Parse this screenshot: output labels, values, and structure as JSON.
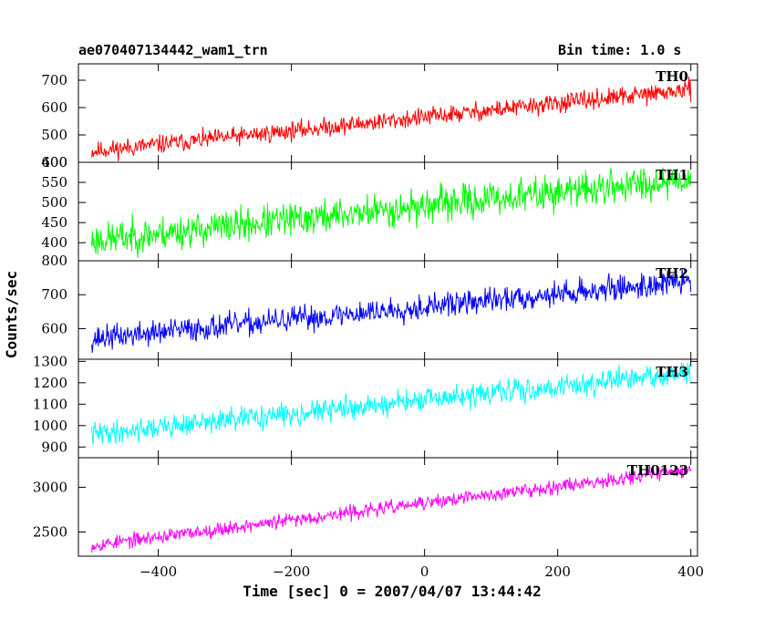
{
  "header": {
    "title_left": "ae070407134442_wam1_trn",
    "title_right": "Bin time: 1.0 s"
  },
  "chart_data": {
    "type": "line",
    "xlabel": "Time [sec] 0 = 2007/04/07 13:44:42",
    "ylabel": "Counts/sec",
    "xlim": [
      -520,
      410
    ],
    "x_start": -500,
    "x_end": 400,
    "xticks": [
      -400,
      -200,
      0,
      200,
      400
    ],
    "panels": [
      {
        "name": "TH0",
        "color": "#ff0000",
        "ylim": [
          400,
          760
        ],
        "yticks": [
          400,
          500,
          600,
          700
        ],
        "trend_start": 440,
        "trend_end": 665,
        "noise": 24,
        "seed": 11
      },
      {
        "name": "TH1",
        "color": "#00ff00",
        "ylim": [
          355,
          600
        ],
        "yticks": [
          400,
          450,
          500,
          550,
          600
        ],
        "trend_start": 405,
        "trend_end": 560,
        "noise": 30,
        "seed": 23
      },
      {
        "name": "TH2",
        "color": "#0000ff",
        "ylim": [
          510,
          800
        ],
        "yticks": [
          600,
          700,
          800
        ],
        "trend_start": 570,
        "trend_end": 740,
        "noise": 26,
        "seed": 37
      },
      {
        "name": "TH3",
        "color": "#00ffff",
        "ylim": [
          850,
          1310
        ],
        "yticks": [
          900,
          1000,
          1100,
          1200,
          1300
        ],
        "trend_start": 960,
        "trend_end": 1245,
        "noise": 38,
        "seed": 41
      },
      {
        "name": "TH0123",
        "color": "#ff00ff",
        "ylim": [
          2230,
          3330
        ],
        "yticks": [
          2500,
          3000
        ],
        "trend_start": 2350,
        "trend_end": 3200,
        "noise": 55,
        "seed": 53
      }
    ]
  }
}
